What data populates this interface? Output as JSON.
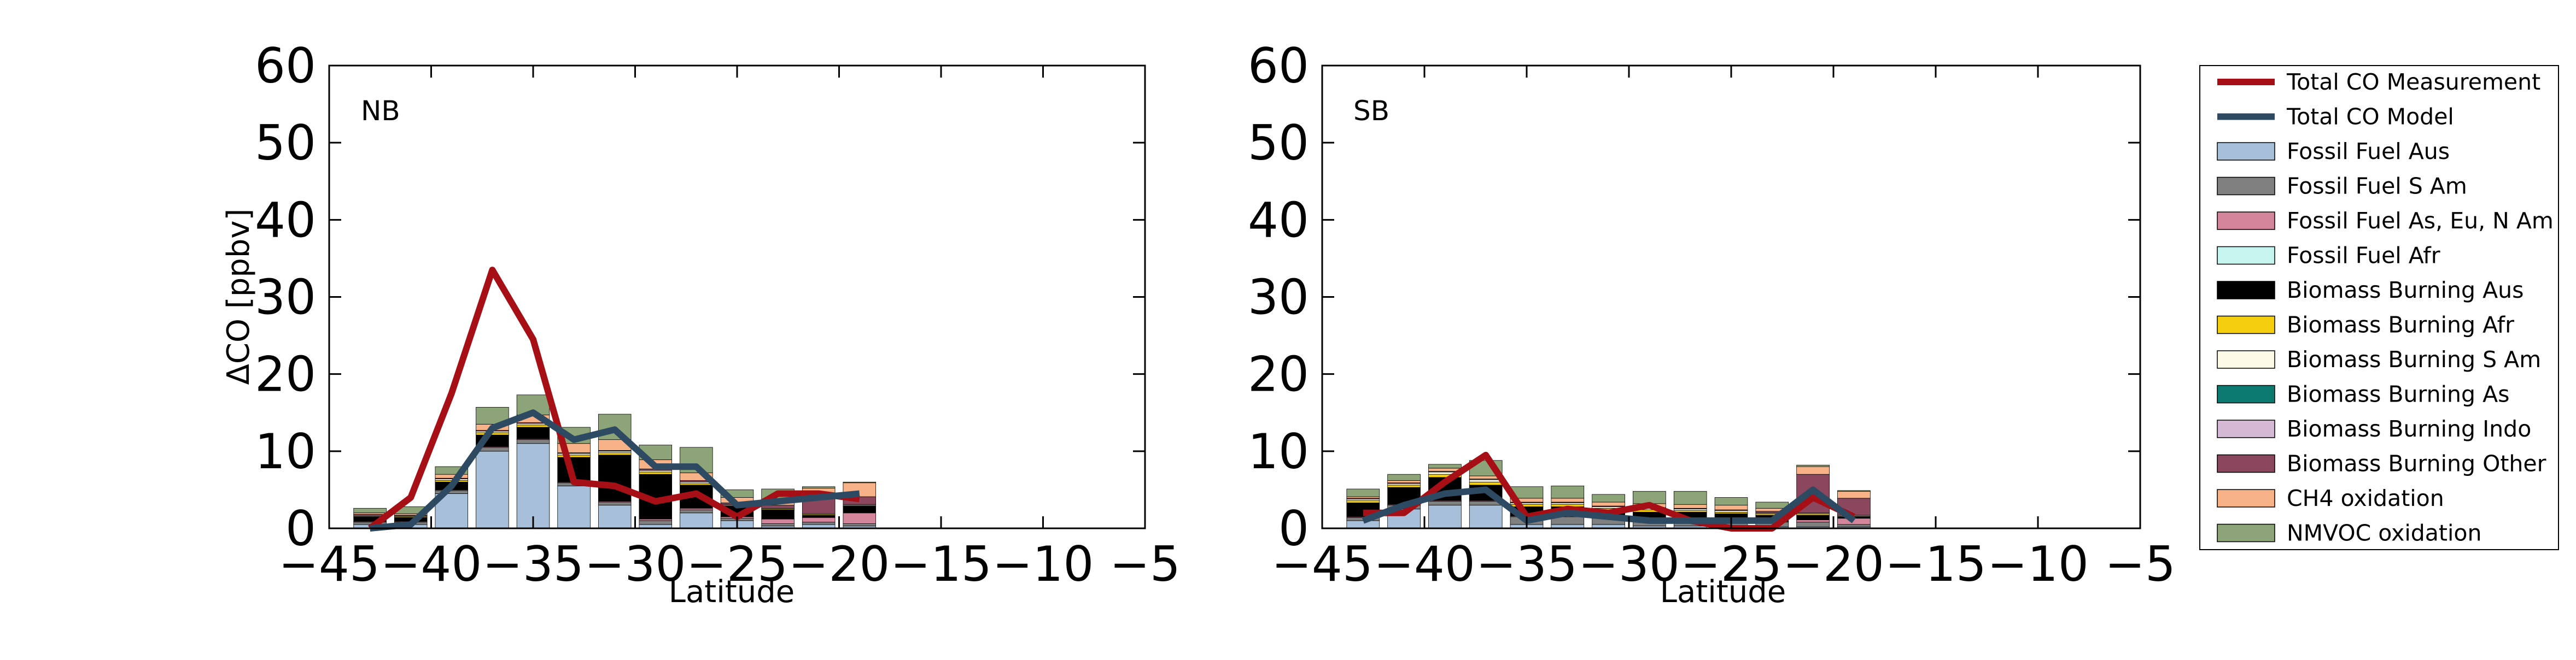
{
  "colors": {
    "Fossil Fuel Aus": "#a8bfd9",
    "Fossil Fuel S Am": "#808080",
    "Fossil Fuel As, Eu, N Am": "#d3869b",
    "Fossil Fuel Afr": "#c6f5f0",
    "Biomass Burning Aus": "#000000",
    "Biomass Burning Afr": "#f4cd0d",
    "Biomass Burning S Am": "#fbfbe7",
    "Biomass Burning As": "#0d7a72",
    "Biomass Burning Indo": "#d5b8d4",
    "Biomass Burning Other": "#8a475e",
    "CH4 oxidation": "#f7b287",
    "NMVOC oxidation": "#8ca477",
    "measurement": "#a50f15",
    "model": "#2e4a62"
  },
  "legend": {
    "placement": "right, outside plots",
    "items": [
      {
        "label": "Total CO Measurement",
        "kind": "line",
        "key": "measurement"
      },
      {
        "label": "Total CO Model",
        "kind": "line",
        "key": "model"
      },
      {
        "label": "Fossil Fuel Aus",
        "kind": "patch",
        "key": "Fossil Fuel Aus"
      },
      {
        "label": "Fossil Fuel S Am",
        "kind": "patch",
        "key": "Fossil Fuel S Am"
      },
      {
        "label": "Fossil Fuel As, Eu, N Am",
        "kind": "patch",
        "key": "Fossil Fuel As, Eu, N Am"
      },
      {
        "label": "Fossil Fuel Afr",
        "kind": "patch",
        "key": "Fossil Fuel Afr"
      },
      {
        "label": "Biomass Burning Aus",
        "kind": "patch",
        "key": "Biomass Burning Aus"
      },
      {
        "label": "Biomass Burning Afr",
        "kind": "patch",
        "key": "Biomass Burning Afr"
      },
      {
        "label": "Biomass Burning S Am",
        "kind": "patch",
        "key": "Biomass Burning S Am"
      },
      {
        "label": "Biomass Burning As",
        "kind": "patch",
        "key": "Biomass Burning As"
      },
      {
        "label": "Biomass Burning Indo",
        "kind": "patch",
        "key": "Biomass Burning Indo"
      },
      {
        "label": "Biomass Burning Other",
        "kind": "patch",
        "key": "Biomass Burning Other"
      },
      {
        "label": "CH4 oxidation",
        "kind": "patch",
        "key": "CH4 oxidation"
      },
      {
        "label": "NMVOC oxidation",
        "kind": "patch",
        "key": "NMVOC oxidation"
      }
    ]
  },
  "chart_data": [
    {
      "type": "bar",
      "stacked": true,
      "panel_label": "NB",
      "xlabel": "Latitude",
      "ylabel": "ΔCO [ppbv]",
      "xlim": [
        -45,
        -5
      ],
      "ylim": [
        0,
        60
      ],
      "xticks": [
        -45,
        -40,
        -35,
        -30,
        -25,
        -20,
        -15,
        -10,
        -5
      ],
      "yticks": [
        0,
        10,
        20,
        30,
        40,
        50,
        60
      ],
      "grid": false,
      "bar_width": 1.6,
      "x": [
        -43,
        -41,
        -39,
        -37,
        -35,
        -33,
        -31,
        -29,
        -27,
        -25,
        -23,
        -21,
        -19
      ],
      "series": [
        {
          "name": "Fossil Fuel Aus",
          "values": [
            0.5,
            0.5,
            4.5,
            10.0,
            11.0,
            5.5,
            3.0,
            0.5,
            2.0,
            1.0,
            0.3,
            0.5,
            0.3
          ]
        },
        {
          "name": "Fossil Fuel S Am",
          "values": [
            0.3,
            0.3,
            0.4,
            0.5,
            0.5,
            0.4,
            0.4,
            0.5,
            0.4,
            0.3,
            0.3,
            0.3,
            0.3
          ]
        },
        {
          "name": "Fossil Fuel As, Eu, N Am",
          "values": [
            0.1,
            0.1,
            0.1,
            0.1,
            0.1,
            0.1,
            0.1,
            0.2,
            0.2,
            0.2,
            0.6,
            0.6,
            1.4
          ]
        },
        {
          "name": "Fossil Fuel Afr",
          "values": [
            0,
            0,
            0,
            0,
            0,
            0,
            0,
            0,
            0,
            0,
            0,
            0,
            0
          ]
        },
        {
          "name": "Biomass Burning Aus",
          "values": [
            0.6,
            0.5,
            1.0,
            1.5,
            1.5,
            3.2,
            6.0,
            5.8,
            3.0,
            1.4,
            1.2,
            0.3,
            0.9
          ]
        },
        {
          "name": "Biomass Burning Afr",
          "values": [
            0.1,
            0.1,
            0.2,
            0.3,
            0.3,
            0.3,
            0.3,
            0.3,
            0.2,
            0.1,
            0.1,
            0.1,
            0.1
          ]
        },
        {
          "name": "Biomass Burning S Am",
          "values": [
            0.1,
            0.1,
            0.2,
            0.2,
            0.2,
            0.2,
            0.2,
            0.2,
            0.2,
            0.1,
            0.1,
            0.1,
            0.1
          ]
        },
        {
          "name": "Biomass Burning As",
          "values": [
            0,
            0,
            0,
            0,
            0,
            0,
            0,
            0,
            0,
            0,
            0,
            0,
            0
          ]
        },
        {
          "name": "Biomass Burning Indo",
          "values": [
            0,
            0,
            0,
            0,
            0,
            0,
            0,
            0,
            0,
            0,
            0,
            0,
            0
          ]
        },
        {
          "name": "Biomass Burning Other",
          "values": [
            0.1,
            0.1,
            0.1,
            0.1,
            0.1,
            0.1,
            0.1,
            0.2,
            0.2,
            0.2,
            0.4,
            2.3,
            1.0
          ]
        },
        {
          "name": "CH4 oxidation",
          "values": [
            0.2,
            0.2,
            0.5,
            0.8,
            1.0,
            1.2,
            1.4,
            1.2,
            1.0,
            0.7,
            0.8,
            1.0,
            1.8
          ]
        },
        {
          "name": "NMVOC oxidation",
          "values": [
            0.6,
            0.9,
            1.0,
            2.2,
            2.6,
            2.1,
            3.3,
            1.9,
            3.3,
            1.0,
            1.3,
            0.2,
            0.1
          ]
        }
      ],
      "lines": [
        {
          "name": "Total CO Measurement",
          "x": [
            -43,
            -41,
            -39,
            -37,
            -35,
            -33,
            -31,
            -29,
            -27,
            -25,
            -23,
            -21,
            -19
          ],
          "y": [
            0.0,
            4.0,
            17.5,
            33.5,
            24.5,
            6.0,
            5.5,
            3.5,
            4.5,
            1.5,
            4.5,
            4.5,
            3.8
          ]
        },
        {
          "name": "Total CO Model",
          "x": [
            -43,
            -41,
            -39,
            -37,
            -35,
            -33,
            -31,
            -29,
            -27,
            -25,
            -23,
            -21,
            -19
          ],
          "y": [
            0.0,
            0.5,
            5.5,
            13.0,
            15.0,
            11.5,
            12.8,
            8.0,
            8.0,
            3.0,
            3.5,
            4.0,
            4.5
          ]
        }
      ]
    },
    {
      "type": "bar",
      "stacked": true,
      "panel_label": "SB",
      "xlabel": "Latitude",
      "ylabel": "",
      "xlim": [
        -45,
        -5
      ],
      "ylim": [
        0,
        60
      ],
      "xticks": [
        -45,
        -40,
        -35,
        -30,
        -25,
        -20,
        -15,
        -10,
        -5
      ],
      "yticks": [
        0,
        10,
        20,
        30,
        40,
        50,
        60
      ],
      "grid": false,
      "bar_width": 1.6,
      "x": [
        -43,
        -41,
        -39,
        -37,
        -35,
        -33,
        -31,
        -29,
        -27,
        -25,
        -23,
        -21,
        -19
      ],
      "series": [
        {
          "name": "Fossil Fuel Aus",
          "values": [
            1.0,
            2.5,
            3.0,
            3.0,
            0.5,
            0.5,
            0.5,
            0.3,
            0.3,
            0.2,
            0.2,
            0.2,
            0.2
          ]
        },
        {
          "name": "Fossil Fuel S Am",
          "values": [
            0.4,
            0.5,
            0.5,
            0.5,
            1.0,
            1.0,
            0.8,
            0.8,
            0.8,
            0.7,
            0.6,
            0.6,
            0.3
          ]
        },
        {
          "name": "Fossil Fuel As, Eu, N Am",
          "values": [
            0.1,
            0.1,
            0.1,
            0.1,
            0.1,
            0.1,
            0.1,
            0.1,
            0.1,
            0.1,
            0.1,
            0.3,
            0.8
          ]
        },
        {
          "name": "Fossil Fuel Afr",
          "values": [
            0,
            0,
            0,
            0,
            0,
            0,
            0,
            0,
            0,
            0,
            0,
            0,
            0
          ]
        },
        {
          "name": "Biomass Burning Aus",
          "values": [
            1.8,
            2.2,
            3.0,
            2.0,
            1.2,
            1.2,
            0.9,
            0.9,
            0.9,
            0.9,
            0.8,
            0.6,
            0.2
          ]
        },
        {
          "name": "Biomass Burning Afr",
          "values": [
            0.3,
            0.3,
            0.4,
            0.4,
            0.3,
            0.3,
            0.3,
            0.3,
            0.2,
            0.2,
            0.2,
            0.2,
            0.1
          ]
        },
        {
          "name": "Biomass Burning S Am",
          "values": [
            0.2,
            0.2,
            0.3,
            0.3,
            0.2,
            0.2,
            0.2,
            0.2,
            0.2,
            0.2,
            0.1,
            0.1,
            0.1
          ]
        },
        {
          "name": "Biomass Burning As",
          "values": [
            0,
            0,
            0,
            0,
            0,
            0,
            0,
            0,
            0,
            0,
            0,
            0,
            0
          ]
        },
        {
          "name": "Biomass Burning Indo",
          "values": [
            0,
            0,
            0,
            0,
            0,
            0,
            0,
            0,
            0,
            0,
            0,
            0,
            0
          ]
        },
        {
          "name": "Biomass Burning Other",
          "values": [
            0.1,
            0.1,
            0.1,
            0.1,
            0.1,
            0.1,
            0.1,
            0.1,
            0.1,
            0.1,
            0.2,
            5.0,
            2.2
          ]
        },
        {
          "name": "CH4 oxidation",
          "values": [
            0.2,
            0.3,
            0.4,
            0.4,
            0.5,
            0.5,
            0.5,
            0.5,
            0.5,
            0.6,
            0.4,
            1.0,
            0.9
          ]
        },
        {
          "name": "NMVOC oxidation",
          "values": [
            1.0,
            0.8,
            0.5,
            2.0,
            1.5,
            1.6,
            1.0,
            1.6,
            1.7,
            1.0,
            0.8,
            0.2,
            0.1
          ]
        }
      ],
      "lines": [
        {
          "name": "Total CO Measurement",
          "x": [
            -43,
            -41,
            -39,
            -37,
            -35,
            -33,
            -31,
            -29,
            -27,
            -25,
            -23,
            -21,
            -19
          ],
          "y": [
            2.0,
            2.0,
            6.0,
            9.5,
            1.5,
            2.5,
            2.0,
            3.0,
            1.0,
            0.0,
            0.0,
            4.0,
            1.5
          ]
        },
        {
          "name": "Total CO Model",
          "x": [
            -43,
            -41,
            -39,
            -37,
            -35,
            -33,
            -31,
            -29,
            -27,
            -25,
            -23,
            -21,
            -19
          ],
          "y": [
            1.0,
            3.0,
            4.5,
            5.0,
            1.0,
            2.0,
            1.5,
            1.0,
            1.0,
            1.0,
            1.0,
            5.0,
            1.0
          ]
        }
      ]
    }
  ]
}
